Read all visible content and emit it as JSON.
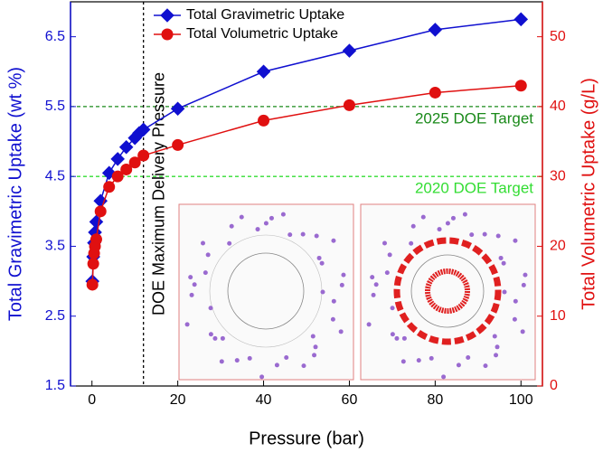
{
  "chart_data": {
    "type": "line",
    "xlabel": "Pressure (bar)",
    "ylabel": "Total Gravimetric Uptake (wt %)",
    "y2label": "Total Volumetric Uptake (g/L)",
    "xlim": [
      -5,
      105
    ],
    "ylim": [
      1.5,
      7.0
    ],
    "y2lim": [
      0,
      55
    ],
    "xticks": [
      0,
      20,
      40,
      60,
      80,
      100
    ],
    "yticks": [
      1.5,
      2.5,
      3.5,
      4.5,
      5.5,
      6.5
    ],
    "y2ticks": [
      0,
      10,
      20,
      30,
      40,
      50
    ],
    "legend": "upper left",
    "series": [
      {
        "name": "Total Gravimetric Uptake",
        "color": "#1010d0",
        "marker": "diamond",
        "x": [
          0.1,
          0.3,
          0.5,
          0.7,
          1,
          2,
          4,
          6,
          8,
          10,
          11,
          12,
          20,
          40,
          60,
          80,
          100
        ],
        "values": [
          3.0,
          3.35,
          3.55,
          3.7,
          3.85,
          4.15,
          4.55,
          4.75,
          4.92,
          5.05,
          5.12,
          5.17,
          5.47,
          6.0,
          6.3,
          6.6,
          6.75
        ]
      },
      {
        "name": "Total Volumetric Uptake",
        "color": "#e01010",
        "marker": "circle",
        "axis": "y2",
        "x": [
          0.1,
          0.3,
          0.5,
          0.7,
          1,
          2,
          4,
          6,
          8,
          10,
          12,
          20,
          40,
          60,
          80,
          100
        ],
        "values": [
          14.5,
          17.5,
          19,
          20,
          21,
          25,
          28.5,
          30,
          31,
          32,
          33,
          34.5,
          38,
          40.2,
          42,
          43
        ]
      }
    ],
    "hlines": [
      {
        "value": 5.5,
        "label": "2025 DOE Target",
        "color": "#1a8a1a"
      },
      {
        "value": 4.5,
        "label": "2020 DOE Target",
        "color": "#33dd33"
      }
    ],
    "vlines": [
      {
        "value": 12,
        "label": "DOE Maximum Delivery Pressure",
        "color": "#000000"
      }
    ]
  }
}
